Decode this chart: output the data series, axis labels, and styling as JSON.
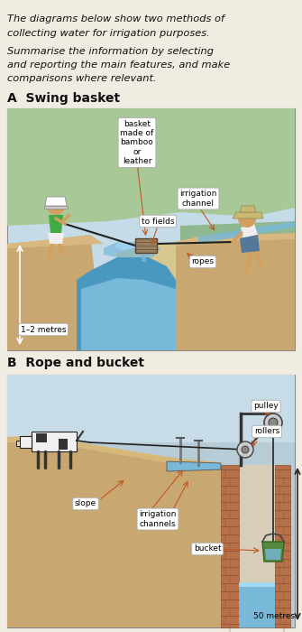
{
  "title_line1": "The diagrams below show two methods of",
  "title_line2": "collecting water for irrigation purposes.",
  "prompt_line1": "Summarise the information by selecting",
  "prompt_line2": "and reporting the main features, and make",
  "prompt_line3": "comparisons where relevant.",
  "section_A": "A  Swing basket",
  "section_B": "B  Rope and bucket",
  "bg_color": "#f0ece2",
  "sky_color_A": "#c5dce8",
  "green_hill": "#a8c898",
  "soil_tan": "#c8a870",
  "soil_dark": "#8b6a40",
  "water_blue": "#78b8d8",
  "water_dark": "#4898c0",
  "brick_color": "#b8704a",
  "brick_dark": "#885030",
  "well_interior": "#d8cdb8",
  "rope_color": "#222222",
  "label_color": "#c05820",
  "white": "#ffffff",
  "figsize": [
    3.35,
    7.0
  ],
  "dpi": 100
}
